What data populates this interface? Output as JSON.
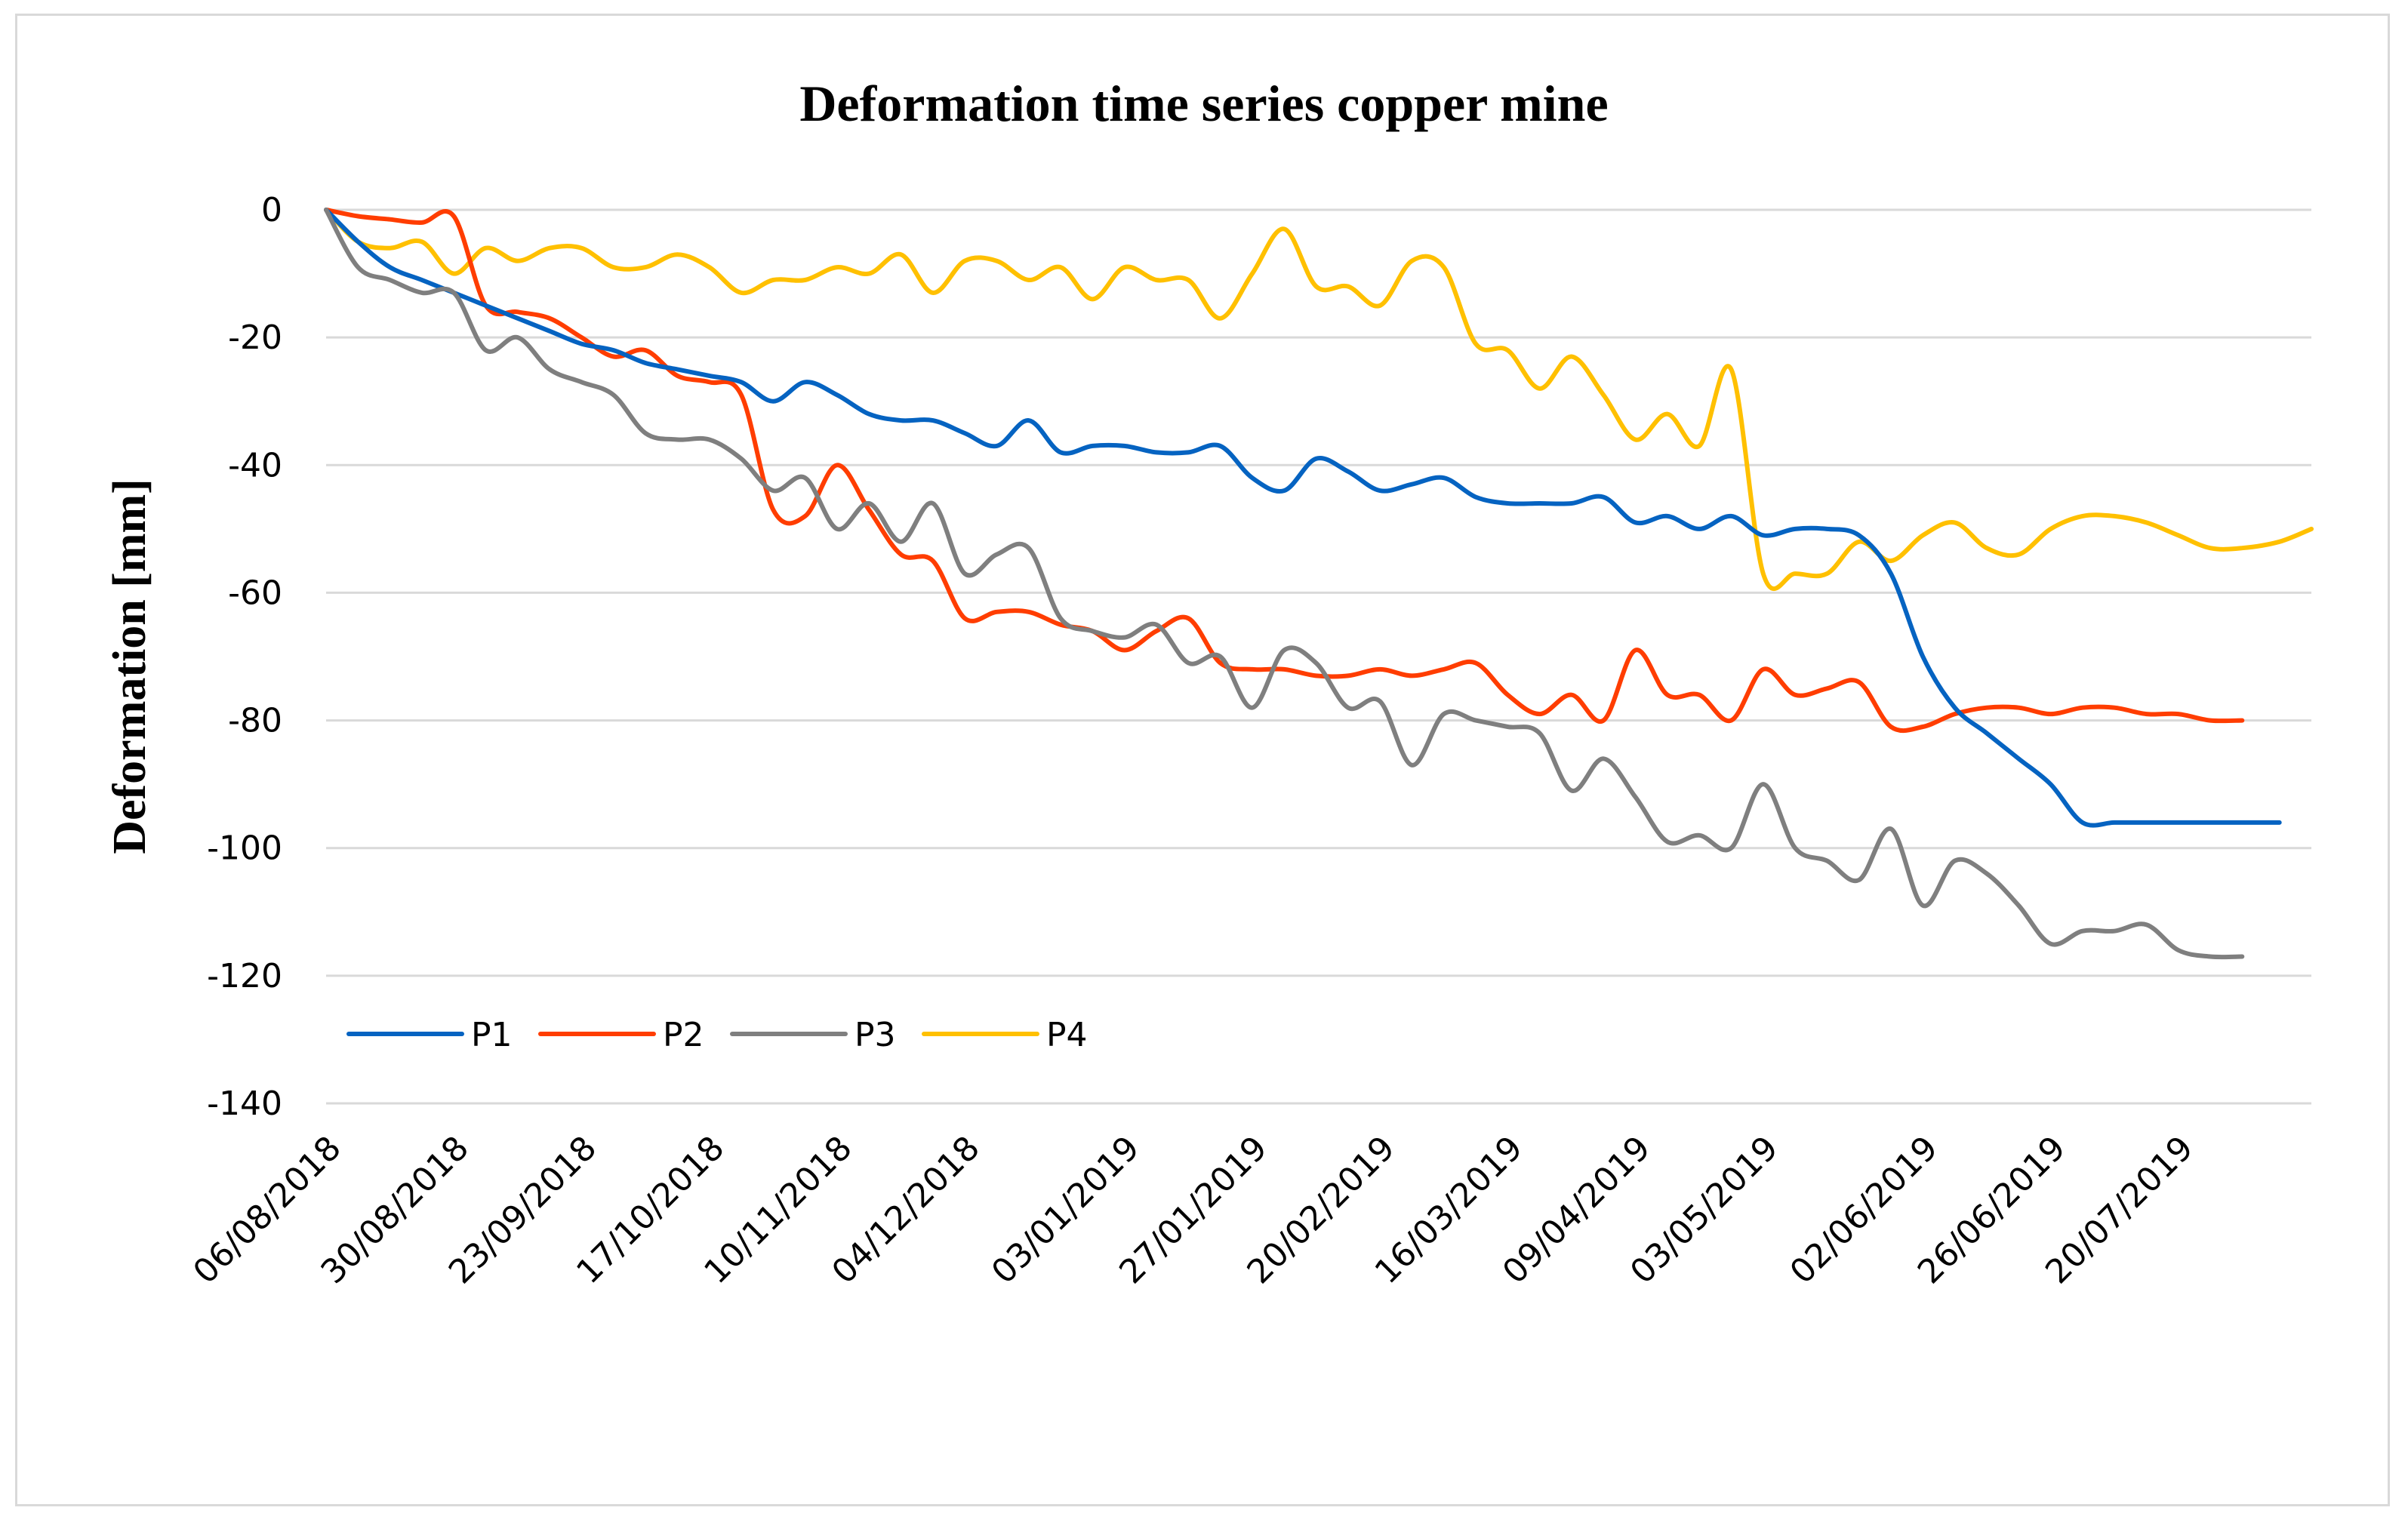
{
  "chart_data": {
    "type": "line",
    "title": "Deformation time series copper mine",
    "xlabel": "",
    "ylabel": "Deformation [mm]",
    "ylim": [
      -140,
      0
    ],
    "yticks": [
      0,
      -20,
      -40,
      -60,
      -80,
      -100,
      -120,
      -140
    ],
    "grid": true,
    "legend_position": "bottom-left",
    "x_start": "06/08/2018",
    "x_end": "14/08/2019",
    "x_tick_labels": [
      "06/08/2018",
      "30/08/2018",
      "23/09/2018",
      "17/10/2018",
      "10/11/2018",
      "04/12/2018",
      "03/01/2019",
      "27/01/2019",
      "20/02/2019",
      "16/03/2019",
      "09/04/2019",
      "03/05/2019",
      "02/06/2019",
      "26/06/2019",
      "20/07/2019"
    ],
    "series": [
      {
        "name": "P1",
        "color": "#0563C1",
        "dates": [
          "06/08/2018",
          "12/08/2018",
          "18/08/2018",
          "24/08/2018",
          "30/08/2018",
          "05/09/2018",
          "11/09/2018",
          "17/09/2018",
          "23/09/2018",
          "29/09/2018",
          "05/10/2018",
          "11/10/2018",
          "17/10/2018",
          "23/10/2018",
          "29/10/2018",
          "04/11/2018",
          "10/11/2018",
          "16/11/2018",
          "22/11/2018",
          "28/11/2018",
          "04/12/2018",
          "10/12/2018",
          "16/12/2018",
          "22/12/2018",
          "28/12/2018",
          "03/01/2019",
          "09/01/2019",
          "15/01/2019",
          "21/01/2019",
          "27/01/2019",
          "02/02/2019",
          "08/02/2019",
          "14/02/2019",
          "20/02/2019",
          "26/02/2019",
          "04/03/2019",
          "10/03/2019",
          "16/03/2019",
          "22/03/2019",
          "28/03/2019",
          "03/04/2019",
          "09/04/2019",
          "15/04/2019",
          "21/04/2019",
          "27/04/2019",
          "03/05/2019",
          "09/05/2019",
          "15/05/2019",
          "21/05/2019",
          "27/05/2019",
          "02/06/2019",
          "08/06/2019",
          "14/06/2019",
          "20/06/2019",
          "26/06/2019",
          "02/07/2019",
          "08/07/2019",
          "14/07/2019",
          "20/07/2019",
          "26/07/2019",
          "01/08/2019",
          "08/08/2019"
        ],
        "values": [
          0,
          -5,
          -9,
          -11,
          -13,
          -15,
          -17,
          -19,
          -21,
          -22,
          -24,
          -25,
          -26,
          -27,
          -30,
          -27,
          -29,
          -32,
          -33,
          -33,
          -35,
          -37,
          -33,
          -38,
          -37,
          -37,
          -38,
          -38,
          -37,
          -42,
          -44,
          -39,
          -41,
          -44,
          -43,
          -42,
          -45,
          -46,
          -46,
          -46,
          -45,
          -49,
          -48,
          -50,
          -48,
          -51,
          -50,
          -50,
          -51,
          -57,
          -70,
          -78,
          -82,
          -86,
          -90,
          -96,
          -96,
          -96,
          -96,
          -96,
          -96,
          -96
        ]
      },
      {
        "name": "P2",
        "color": "#FF3D00",
        "dates": [
          "06/08/2018",
          "12/08/2018",
          "18/08/2018",
          "24/08/2018",
          "30/08/2018",
          "05/09/2018",
          "11/09/2018",
          "17/09/2018",
          "23/09/2018",
          "29/09/2018",
          "05/10/2018",
          "11/10/2018",
          "17/10/2018",
          "23/10/2018",
          "29/10/2018",
          "04/11/2018",
          "10/11/2018",
          "16/11/2018",
          "22/11/2018",
          "28/11/2018",
          "04/12/2018",
          "10/12/2018",
          "16/12/2018",
          "22/12/2018",
          "28/12/2018",
          "03/01/2019",
          "09/01/2019",
          "15/01/2019",
          "21/01/2019",
          "27/01/2019",
          "02/02/2019",
          "08/02/2019",
          "14/02/2019",
          "20/02/2019",
          "26/02/2019",
          "04/03/2019",
          "10/03/2019",
          "16/03/2019",
          "22/03/2019",
          "28/03/2019",
          "03/04/2019",
          "09/04/2019",
          "15/04/2019",
          "21/04/2019",
          "27/04/2019",
          "03/05/2019",
          "09/05/2019",
          "15/05/2019",
          "21/05/2019",
          "27/05/2019",
          "02/06/2019",
          "08/06/2019",
          "14/06/2019",
          "20/06/2019",
          "26/06/2019",
          "02/07/2019",
          "08/07/2019",
          "14/07/2019",
          "20/07/2019",
          "26/07/2019",
          "01/08/2019"
        ],
        "values": [
          0,
          -1,
          -1.5,
          -2,
          -1,
          -15,
          -16,
          -17,
          -20,
          -23,
          -22,
          -26,
          -27,
          -29,
          -47,
          -48,
          -40,
          -47,
          -54,
          -55,
          -64,
          -63,
          -63,
          -65,
          -66,
          -69,
          -66,
          -64,
          -71,
          -72,
          -72,
          -73,
          -73,
          -72,
          -73,
          -72,
          -71,
          -76,
          -79,
          -76,
          -80,
          -69,
          -76,
          -76,
          -80,
          -72,
          -76,
          -75,
          -74,
          -81,
          -81,
          -79,
          -78,
          -78,
          -79,
          -78,
          -78,
          -79,
          -79,
          -80,
          -80
        ]
      },
      {
        "name": "P3",
        "color": "#7F7F7F",
        "dates": [
          "06/08/2018",
          "12/08/2018",
          "18/08/2018",
          "24/08/2018",
          "30/08/2018",
          "05/09/2018",
          "11/09/2018",
          "17/09/2018",
          "23/09/2018",
          "29/09/2018",
          "05/10/2018",
          "11/10/2018",
          "17/10/2018",
          "23/10/2018",
          "29/10/2018",
          "04/11/2018",
          "10/11/2018",
          "16/11/2018",
          "22/11/2018",
          "28/11/2018",
          "04/12/2018",
          "10/12/2018",
          "16/12/2018",
          "22/12/2018",
          "28/12/2018",
          "03/01/2019",
          "09/01/2019",
          "15/01/2019",
          "21/01/2019",
          "27/01/2019",
          "02/02/2019",
          "08/02/2019",
          "14/02/2019",
          "20/02/2019",
          "26/02/2019",
          "04/03/2019",
          "10/03/2019",
          "16/03/2019",
          "22/03/2019",
          "28/03/2019",
          "03/04/2019",
          "09/04/2019",
          "15/04/2019",
          "21/04/2019",
          "27/04/2019",
          "03/05/2019",
          "09/05/2019",
          "15/05/2019",
          "21/05/2019",
          "27/05/2019",
          "02/06/2019",
          "08/06/2019",
          "14/06/2019",
          "20/06/2019",
          "26/06/2019",
          "02/07/2019",
          "08/07/2019",
          "14/07/2019",
          "20/07/2019",
          "26/07/2019",
          "01/08/2019"
        ],
        "values": [
          0,
          -9,
          -11,
          -13,
          -13,
          -22,
          -20,
          -25,
          -27,
          -29,
          -35,
          -36,
          -36,
          -39,
          -44,
          -42,
          -50,
          -46,
          -52,
          -46,
          -57,
          -54,
          -53,
          -64,
          -66,
          -67,
          -65,
          -71,
          -70,
          -78,
          -69,
          -71,
          -78,
          -77,
          -87,
          -79,
          -80,
          -81,
          -82,
          -91,
          -86,
          -92,
          -99,
          -98,
          -100,
          -90,
          -100,
          -102,
          -105,
          -97,
          -109,
          -102,
          -104,
          -109,
          -115,
          -113,
          -113,
          -112,
          -116,
          -117,
          -117
        ]
      },
      {
        "name": "P4",
        "color": "#FFC000",
        "dates": [
          "06/08/2018",
          "12/08/2018",
          "18/08/2018",
          "24/08/2018",
          "30/08/2018",
          "05/09/2018",
          "11/09/2018",
          "17/09/2018",
          "23/09/2018",
          "29/09/2018",
          "05/10/2018",
          "11/10/2018",
          "17/10/2018",
          "23/10/2018",
          "29/10/2018",
          "04/11/2018",
          "10/11/2018",
          "16/11/2018",
          "22/11/2018",
          "28/11/2018",
          "04/12/2018",
          "10/12/2018",
          "16/12/2018",
          "22/12/2018",
          "28/12/2018",
          "03/01/2019",
          "09/01/2019",
          "15/01/2019",
          "21/01/2019",
          "27/01/2019",
          "02/02/2019",
          "08/02/2019",
          "14/02/2019",
          "20/02/2019",
          "26/02/2019",
          "04/03/2019",
          "10/03/2019",
          "16/03/2019",
          "22/03/2019",
          "28/03/2019",
          "03/04/2019",
          "09/04/2019",
          "15/04/2019",
          "21/04/2019",
          "27/04/2019",
          "03/05/2019",
          "09/05/2019",
          "15/05/2019",
          "21/05/2019",
          "27/05/2019",
          "02/06/2019",
          "08/06/2019",
          "14/06/2019",
          "20/06/2019",
          "26/06/2019",
          "02/07/2019",
          "08/07/2019",
          "14/07/2019",
          "20/07/2019",
          "26/07/2019",
          "01/08/2019",
          "08/08/2019",
          "14/08/2019"
        ],
        "values": [
          0,
          -5,
          -6,
          -5,
          -10,
          -6,
          -8,
          -6,
          -6,
          -9,
          -9,
          -7,
          -9,
          -13,
          -11,
          -11,
          -9,
          -10,
          -7,
          -13,
          -8,
          -8,
          -11,
          -9,
          -14,
          -9,
          -11,
          -11,
          -17,
          -10,
          -3,
          -12,
          -12,
          -15,
          -8,
          -9,
          -21,
          -22,
          -28,
          -23,
          -29,
          -36,
          -32,
          -37,
          -25,
          -57,
          -57,
          -57,
          -52,
          -55,
          -51,
          -49,
          -53,
          -54,
          -50,
          -48,
          -48,
          -49,
          -51,
          -53,
          -53,
          -52,
          -50
        ]
      }
    ]
  }
}
